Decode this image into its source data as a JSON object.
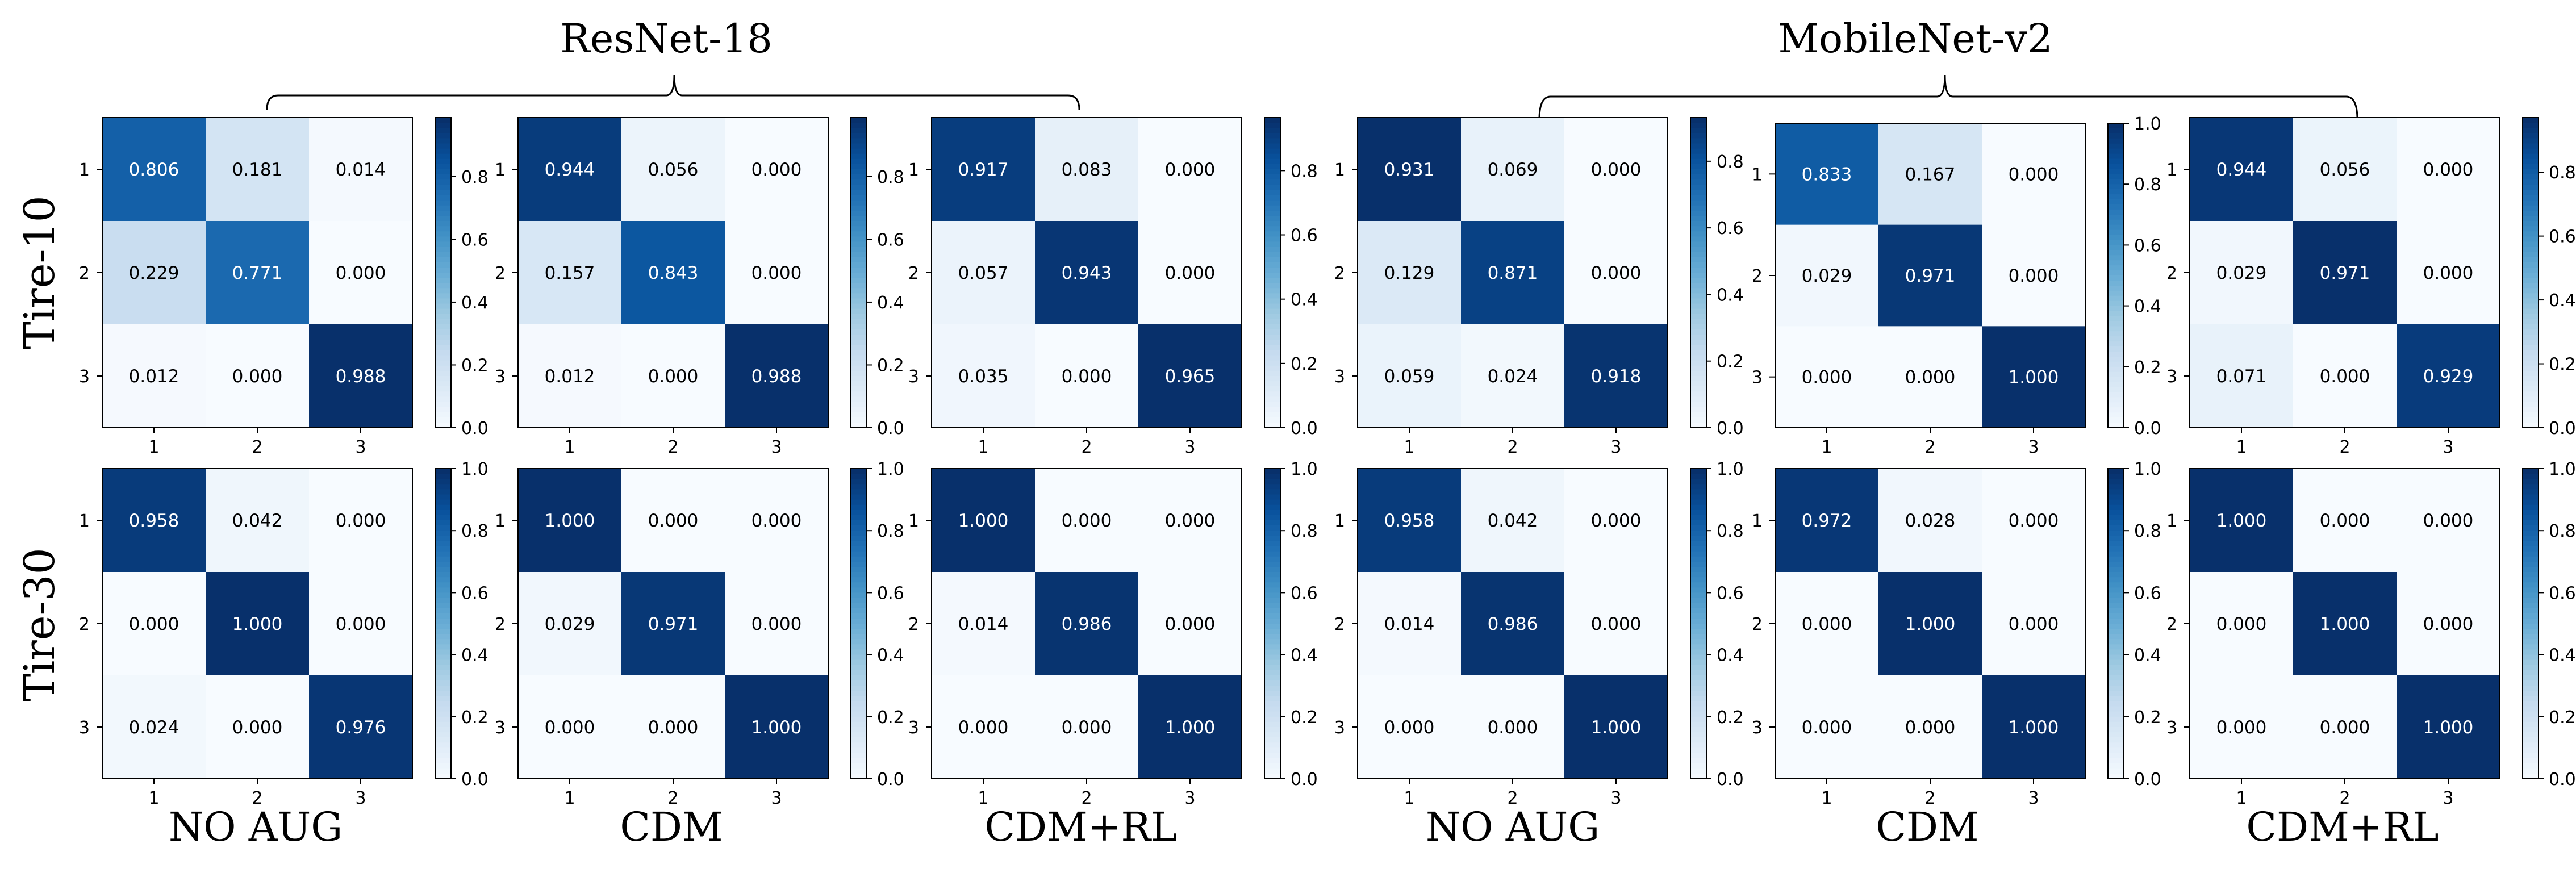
{
  "figure": {
    "group_titles": [
      "ResNet-18",
      "MobileNet-v2"
    ],
    "row_labels": [
      "Tire-10",
      "Tire-30"
    ],
    "column_labels": [
      "NO AUG",
      "CDM",
      "CDM+RL",
      "NO AUG",
      "CDM",
      "CDM+RL"
    ]
  },
  "colors": {
    "cmap": "Blues",
    "low": "#f7fbff",
    "high": "#08306b"
  },
  "chart_data": [
    {
      "type": "heatmap",
      "row": "Tire-10",
      "model": "ResNet-18",
      "method": "NO AUG",
      "categories": [
        "1",
        "2",
        "3"
      ],
      "values": [
        [
          0.806,
          0.181,
          0.014
        ],
        [
          0.229,
          0.771,
          0.0
        ],
        [
          0.012,
          0.0,
          0.988
        ]
      ],
      "colorbar_range": [
        0.0,
        0.988
      ],
      "colorbar_ticks": [
        "0.0",
        "0.2",
        "0.4",
        "0.6",
        "0.8"
      ]
    },
    {
      "type": "heatmap",
      "row": "Tire-10",
      "model": "ResNet-18",
      "method": "CDM",
      "categories": [
        "1",
        "2",
        "3"
      ],
      "values": [
        [
          0.944,
          0.056,
          0.0
        ],
        [
          0.157,
          0.843,
          0.0
        ],
        [
          0.012,
          0.0,
          0.988
        ]
      ],
      "colorbar_range": [
        0.0,
        0.988
      ],
      "colorbar_ticks": [
        "0.0",
        "0.2",
        "0.4",
        "0.6",
        "0.8"
      ]
    },
    {
      "type": "heatmap",
      "row": "Tire-10",
      "model": "ResNet-18",
      "method": "CDM+RL",
      "categories": [
        "1",
        "2",
        "3"
      ],
      "values": [
        [
          0.917,
          0.083,
          0.0
        ],
        [
          0.057,
          0.943,
          0.0
        ],
        [
          0.035,
          0.0,
          0.965
        ]
      ],
      "colorbar_range": [
        0.0,
        0.965
      ],
      "colorbar_ticks": [
        "0.0",
        "0.2",
        "0.4",
        "0.6",
        "0.8"
      ]
    },
    {
      "type": "heatmap",
      "row": "Tire-10",
      "model": "MobileNet-v2",
      "method": "NO AUG",
      "categories": [
        "1",
        "2",
        "3"
      ],
      "values": [
        [
          0.931,
          0.069,
          0.0
        ],
        [
          0.129,
          0.871,
          0.0
        ],
        [
          0.059,
          0.024,
          0.918
        ]
      ],
      "colorbar_range": [
        0.0,
        0.931
      ],
      "colorbar_ticks": [
        "0.0",
        "0.2",
        "0.4",
        "0.6",
        "0.8"
      ]
    },
    {
      "type": "heatmap",
      "row": "Tire-10",
      "model": "MobileNet-v2",
      "method": "CDM",
      "categories": [
        "1",
        "2",
        "3"
      ],
      "values": [
        [
          0.833,
          0.167,
          0.0
        ],
        [
          0.029,
          0.971,
          0.0
        ],
        [
          0.0,
          0.0,
          1.0
        ]
      ],
      "colorbar_range": [
        0.0,
        1.0
      ],
      "colorbar_ticks": [
        "0.0",
        "0.2",
        "0.4",
        "0.6",
        "0.8",
        "1.0"
      ]
    },
    {
      "type": "heatmap",
      "row": "Tire-10",
      "model": "MobileNet-v2",
      "method": "CDM+RL",
      "categories": [
        "1",
        "2",
        "3"
      ],
      "values": [
        [
          0.944,
          0.056,
          0.0
        ],
        [
          0.029,
          0.971,
          0.0
        ],
        [
          0.071,
          0.0,
          0.929
        ]
      ],
      "colorbar_range": [
        0.0,
        0.971
      ],
      "colorbar_ticks": [
        "0.0",
        "0.2",
        "0.4",
        "0.6",
        "0.8"
      ]
    },
    {
      "type": "heatmap",
      "row": "Tire-30",
      "model": "ResNet-18",
      "method": "NO AUG",
      "categories": [
        "1",
        "2",
        "3"
      ],
      "values": [
        [
          0.958,
          0.042,
          0.0
        ],
        [
          0.0,
          1.0,
          0.0
        ],
        [
          0.024,
          0.0,
          0.976
        ]
      ],
      "colorbar_range": [
        0.0,
        1.0
      ],
      "colorbar_ticks": [
        "0.0",
        "0.2",
        "0.4",
        "0.6",
        "0.8",
        "1.0"
      ]
    },
    {
      "type": "heatmap",
      "row": "Tire-30",
      "model": "ResNet-18",
      "method": "CDM",
      "categories": [
        "1",
        "2",
        "3"
      ],
      "values": [
        [
          1.0,
          0.0,
          0.0
        ],
        [
          0.029,
          0.971,
          0.0
        ],
        [
          0.0,
          0.0,
          1.0
        ]
      ],
      "colorbar_range": [
        0.0,
        1.0
      ],
      "colorbar_ticks": [
        "0.0",
        "0.2",
        "0.4",
        "0.6",
        "0.8",
        "1.0"
      ]
    },
    {
      "type": "heatmap",
      "row": "Tire-30",
      "model": "ResNet-18",
      "method": "CDM+RL",
      "categories": [
        "1",
        "2",
        "3"
      ],
      "values": [
        [
          1.0,
          0.0,
          0.0
        ],
        [
          0.014,
          0.986,
          0.0
        ],
        [
          0.0,
          0.0,
          1.0
        ]
      ],
      "colorbar_range": [
        0.0,
        1.0
      ],
      "colorbar_ticks": [
        "0.0",
        "0.2",
        "0.4",
        "0.6",
        "0.8",
        "1.0"
      ]
    },
    {
      "type": "heatmap",
      "row": "Tire-30",
      "model": "MobileNet-v2",
      "method": "NO AUG",
      "categories": [
        "1",
        "2",
        "3"
      ],
      "values": [
        [
          0.958,
          0.042,
          0.0
        ],
        [
          0.014,
          0.986,
          0.0
        ],
        [
          0.0,
          0.0,
          1.0
        ]
      ],
      "colorbar_range": [
        0.0,
        1.0
      ],
      "colorbar_ticks": [
        "0.0",
        "0.2",
        "0.4",
        "0.6",
        "0.8",
        "1.0"
      ]
    },
    {
      "type": "heatmap",
      "row": "Tire-30",
      "model": "MobileNet-v2",
      "method": "CDM",
      "categories": [
        "1",
        "2",
        "3"
      ],
      "values": [
        [
          0.972,
          0.028,
          0.0
        ],
        [
          0.0,
          1.0,
          0.0
        ],
        [
          0.0,
          0.0,
          1.0
        ]
      ],
      "colorbar_range": [
        0.0,
        1.0
      ],
      "colorbar_ticks": [
        "0.0",
        "0.2",
        "0.4",
        "0.6",
        "0.8",
        "1.0"
      ]
    },
    {
      "type": "heatmap",
      "row": "Tire-30",
      "model": "MobileNet-v2",
      "method": "CDM+RL",
      "categories": [
        "1",
        "2",
        "3"
      ],
      "values": [
        [
          1.0,
          0.0,
          0.0
        ],
        [
          0.0,
          1.0,
          0.0
        ],
        [
          0.0,
          0.0,
          1.0
        ]
      ],
      "colorbar_range": [
        0.0,
        1.0
      ],
      "colorbar_ticks": [
        "0.0",
        "0.2",
        "0.4",
        "0.6",
        "0.8",
        "1.0"
      ]
    }
  ]
}
